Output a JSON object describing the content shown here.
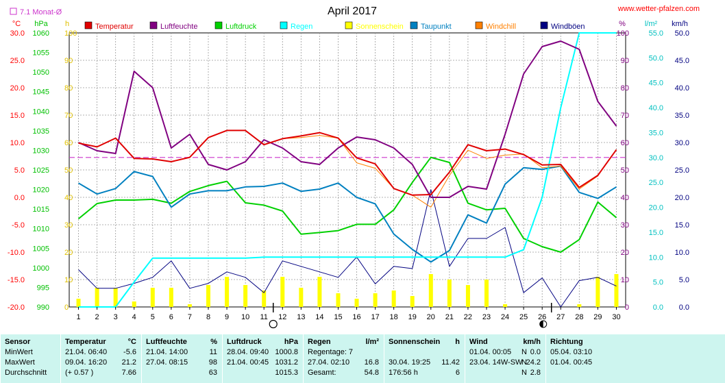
{
  "title": "April 2017",
  "watermark": "www.wetter-pfalzen.com",
  "rain_sum_label": "7.1 Monat-Ø",
  "units_left": [
    "°C",
    "hPa",
    "h"
  ],
  "units_right": [
    "%",
    "l/m²",
    "km/h"
  ],
  "legend": [
    {
      "label": "Temperatur",
      "color": "#e00000"
    },
    {
      "label": "Luftfeuchte",
      "color": "#800080"
    },
    {
      "label": "Luftdruck",
      "color": "#00d000"
    },
    {
      "label": "Regen",
      "color": "#00ffff"
    },
    {
      "label": "Sonnenschein",
      "color": "#ffff00"
    },
    {
      "label": "Taupunkt",
      "color": "#0080c0"
    },
    {
      "label": "Windchill",
      "color": "#ff8000"
    },
    {
      "label": "Windböen",
      "color": "#000080"
    }
  ],
  "chart_data": {
    "type": "line",
    "x": [
      1,
      2,
      3,
      4,
      5,
      6,
      7,
      8,
      9,
      10,
      11,
      12,
      13,
      14,
      15,
      16,
      17,
      18,
      19,
      20,
      21,
      22,
      23,
      24,
      25,
      26,
      27,
      28,
      29,
      30
    ],
    "axes": {
      "temperature_c": {
        "range": [
          -20,
          30
        ],
        "ticks": [
          "30.0",
          "25.0",
          "20.0",
          "15.0",
          "10.0",
          "5.0",
          "0.0",
          "-5.0",
          "-10.0",
          "-15.0",
          "-20.0"
        ]
      },
      "pressure_hpa": {
        "range": [
          990,
          1060
        ],
        "ticks": [
          "1060",
          "1055",
          "1050",
          "1045",
          "1040",
          "1035",
          "1030",
          "1025",
          "1020",
          "1015",
          "1010",
          "1005",
          "1000",
          "995",
          "990"
        ]
      },
      "sunshine_h": {
        "range": [
          0,
          100
        ],
        "ticks": [
          "100",
          "90",
          "80",
          "70",
          "60",
          "50",
          "40",
          "30",
          "20",
          "10",
          "0"
        ]
      },
      "humidity_pct": {
        "range": [
          0,
          100
        ],
        "ticks": [
          "100",
          "90",
          "80",
          "70",
          "60",
          "50",
          "40",
          "30",
          "20",
          "10",
          "0"
        ]
      },
      "rain_lm2": {
        "range": [
          0,
          55
        ],
        "ticks": [
          "55.0",
          "50.0",
          "45.0",
          "40.0",
          "35.0",
          "30.0",
          "25.0",
          "20.0",
          "15.0",
          "10.0",
          "5.0",
          "0.0"
        ]
      },
      "wind_kmh": {
        "range": [
          0,
          50
        ],
        "ticks": [
          "50.0",
          "45.0",
          "40.0",
          "35.0",
          "30.0",
          "25.0",
          "20.0",
          "15.0",
          "10.0",
          "5.0",
          "0.0"
        ]
      }
    },
    "series": [
      {
        "name": "Temperatur",
        "axis": "temperature_c",
        "color": "#e00000",
        "values": [
          9.9,
          9.2,
          10.8,
          7.1,
          7.0,
          6.5,
          7.3,
          10.9,
          12.2,
          12.2,
          9.6,
          10.7,
          11.2,
          11.8,
          10.8,
          7.2,
          6.1,
          1.6,
          0.4,
          0.5,
          4.6,
          9.6,
          8.5,
          8.8,
          7.8,
          5.9,
          6.0,
          1.8,
          4.0,
          8.7
        ]
      },
      {
        "name": "Windchill",
        "axis": "temperature_c",
        "color": "#ff8000",
        "values": [
          9.9,
          9.2,
          10.8,
          7.1,
          7.0,
          6.5,
          7.3,
          10.9,
          12.2,
          12.2,
          9.6,
          10.7,
          10.9,
          11.3,
          10.8,
          6.3,
          5.3,
          1.6,
          0.4,
          -1.8,
          4.0,
          8.6,
          7.1,
          7.7,
          7.9,
          5.4,
          5.7,
          1.5,
          3.9,
          8.7
        ]
      },
      {
        "name": "Taupunkt",
        "axis": "temperature_c",
        "color": "#0080c0",
        "values": [
          2.6,
          0.6,
          1.6,
          4.7,
          3.8,
          -1.8,
          0.6,
          1.2,
          1.2,
          1.9,
          2.0,
          2.6,
          1.1,
          1.5,
          2.6,
          0.0,
          -1.2,
          -6.7,
          -9.5,
          -11.8,
          -9.7,
          -3.2,
          -4.7,
          2.4,
          5.4,
          5.1,
          5.7,
          0.9,
          -0.2,
          1.9
        ]
      },
      {
        "name": "Luftdruck",
        "axis": "pressure_hpa",
        "color": "#00d000",
        "values": [
          1012.5,
          1016.4,
          1017.3,
          1017.3,
          1017.5,
          1016.5,
          1019.5,
          1021.0,
          1022.1,
          1016.6,
          1016.0,
          1014.5,
          1008.6,
          1009.0,
          1009.5,
          1011.1,
          1011.1,
          1014.8,
          1021.8,
          1028.2,
          1026.9,
          1016.5,
          1014.8,
          1015.2,
          1007.5,
          1005.4,
          1004.0,
          1007.2,
          1016.8,
          1012.8
        ]
      },
      {
        "name": "Luftfeuchte",
        "axis": "humidity_pct",
        "color": "#800080",
        "values": [
          60,
          57,
          56,
          86,
          80,
          58,
          63,
          52,
          50,
          53,
          61,
          58,
          53,
          52,
          58,
          62,
          61,
          58,
          52,
          40,
          40,
          44,
          43,
          63,
          85,
          95,
          97,
          94,
          75,
          66
        ]
      },
      {
        "name": "Regen",
        "axis": "rain_lm2",
        "color": "#00ffff",
        "values": [
          0,
          0,
          0,
          5.0,
          9.8,
          9.8,
          9.8,
          9.8,
          9.8,
          9.8,
          10.0,
          10.0,
          10.0,
          10.0,
          10.0,
          10.0,
          10.0,
          10.0,
          10.0,
          10.0,
          10.0,
          10.0,
          10.0,
          10.0,
          11.5,
          22.0,
          40.0,
          55.0,
          55.0,
          55.0
        ]
      },
      {
        "name": "Windböen",
        "axis": "wind_kmh",
        "color": "#000080",
        "values": [
          6.8,
          3.4,
          3.4,
          4.3,
          5.4,
          8.4,
          3.4,
          4.3,
          6.4,
          5.4,
          2.6,
          8.4,
          7.4,
          6.4,
          5.4,
          9.1,
          4.2,
          7.4,
          7.0,
          21.4,
          7.4,
          12.5,
          12.5,
          14.5,
          2.6,
          5.3,
          0.0,
          4.8,
          5.4,
          3.8
        ]
      },
      {
        "name": "Sonnenschein",
        "axis": "sunshine_h",
        "color": "#ffff00",
        "kind": "bar",
        "values": [
          3,
          7,
          7,
          2,
          7,
          7,
          1,
          8,
          11,
          8,
          6,
          11,
          7,
          11,
          5,
          3,
          5,
          6,
          4,
          12,
          10,
          8,
          10,
          1,
          0,
          0,
          0,
          1,
          11,
          12
        ]
      }
    ],
    "reference_line": {
      "axis": "rain_lm2",
      "value": 30.0,
      "color": "#cc33cc",
      "label": "Monat-Ø"
    },
    "markers": [
      {
        "x": 11.5,
        "symbol": "new-moon-outline"
      },
      {
        "x": 26.5,
        "symbol": "half-moon"
      }
    ]
  },
  "summary": {
    "columns": [
      {
        "id": "sensor",
        "header": [
          "Sensor",
          ""
        ],
        "rows": [
          [
            "MinWert",
            ""
          ],
          [
            "MaxWert",
            ""
          ],
          [
            "Durchschnitt",
            ""
          ]
        ]
      },
      {
        "id": "temp",
        "header": [
          "Temperatur",
          "°C"
        ],
        "rows": [
          [
            "21.04.  06:40",
            "-5.6"
          ],
          [
            "09.04.  16:20",
            "21.2"
          ],
          [
            "(+ 0.57 )",
            "7.66"
          ]
        ]
      },
      {
        "id": "hum",
        "header": [
          "Luftfeuchte",
          "%"
        ],
        "rows": [
          [
            "21.04.  14:00",
            "11"
          ],
          [
            "27.04.  08:15",
            "98"
          ],
          [
            "",
            "63"
          ]
        ]
      },
      {
        "id": "press",
        "header": [
          "Luftdruck",
          "hPa"
        ],
        "rows": [
          [
            "28.04.  09:40",
            "1000.8"
          ],
          [
            "21.04.  00:45",
            "1031.2"
          ],
          [
            "",
            "1015.3"
          ]
        ]
      },
      {
        "id": "rain",
        "header": [
          "Regen",
          "l/m²"
        ],
        "rows": [
          [
            "Regentage: 7",
            ""
          ],
          [
            "27.04.  02:10",
            "16.8"
          ],
          [
            "Gesamt:",
            "54.8"
          ]
        ]
      },
      {
        "id": "sun",
        "header": [
          "Sonnenschein",
          "h"
        ],
        "rows": [
          [
            "",
            ""
          ],
          [
            "30.04.  19:25",
            "11.42"
          ],
          [
            "176:56 h",
            "6"
          ]
        ]
      },
      {
        "id": "wind",
        "header": [
          "Wind",
          "km/h"
        ],
        "rows": [
          [
            "01.04.  00:05",
            "0.0"
          ],
          [
            "23.04.  14W-SW",
            "24.2"
          ],
          [
            "",
            "2.8"
          ]
        ]
      },
      {
        "id": "dir",
        "header": [
          "Richtung",
          ""
        ],
        "rows": [
          [
            "05.04.  03:10",
            "N"
          ],
          [
            "01.04.  00:45",
            "N"
          ],
          [
            "",
            "N"
          ]
        ]
      }
    ]
  }
}
